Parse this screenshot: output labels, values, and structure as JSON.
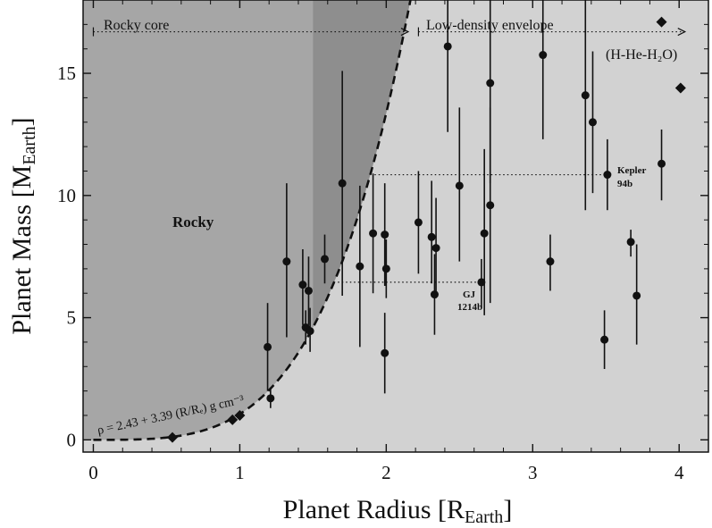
{
  "chart_data": {
    "type": "scatter",
    "xlabel": {
      "main": "Planet Radius [R",
      "sub": "Earth",
      "end": "]"
    },
    "ylabel": {
      "main": "Planet Mass [M",
      "sub": "Earth",
      "end": "]"
    },
    "xlim": [
      -0.07,
      4.2
    ],
    "ylim": [
      -0.5,
      18
    ],
    "xticks": [
      0,
      1,
      2,
      3,
      4
    ],
    "yticks": [
      0,
      5,
      10,
      15
    ],
    "grid": false,
    "annotations": {
      "rocky_core": "Rocky core",
      "low_density": "Low-density envelope",
      "hhe": "(H-He-H₂O)",
      "rocky": "Rocky",
      "kepler_line1": "Kepler",
      "kepler_line2": "94b",
      "gj_line1": "GJ",
      "gj_line2": "1214b",
      "equation": "ρ = 2.43 + 3.39 (R/Rₑ) g cm⁻³"
    },
    "boundary_curve": {
      "a": 2.43,
      "b": 3.39
    },
    "points": [
      {
        "x": 1.19,
        "y": 3.8,
        "lo": 2.0,
        "hi": 5.6
      },
      {
        "x": 1.21,
        "y": 1.7,
        "lo": 1.3,
        "hi": 2.1
      },
      {
        "x": 1.32,
        "y": 7.3,
        "lo": 4.2,
        "hi": 10.5
      },
      {
        "x": 1.43,
        "y": 6.35,
        "lo": 4.7,
        "hi": 7.8
      },
      {
        "x": 1.45,
        "y": 4.6,
        "lo": 3.9,
        "hi": 5.3
      },
      {
        "x": 1.47,
        "y": 6.1,
        "lo": 4.7,
        "hi": 7.5
      },
      {
        "x": 1.48,
        "y": 4.45,
        "lo": 3.6,
        "hi": 5.4
      },
      {
        "x": 1.58,
        "y": 7.4,
        "lo": 6.4,
        "hi": 8.4
      },
      {
        "x": 1.7,
        "y": 10.5,
        "lo": 5.9,
        "hi": 15.1
      },
      {
        "x": 1.82,
        "y": 7.1,
        "lo": 3.8,
        "hi": 10.4
      },
      {
        "x": 1.91,
        "y": 8.45,
        "lo": 6.0,
        "hi": 10.9
      },
      {
        "x": 1.99,
        "y": 8.4,
        "lo": 6.3,
        "hi": 10.5
      },
      {
        "x": 2.0,
        "y": 7.0,
        "lo": 5.8,
        "hi": 8.2
      },
      {
        "x": 1.99,
        "y": 3.55,
        "lo": 1.9,
        "hi": 5.2
      },
      {
        "x": 2.22,
        "y": 8.9,
        "lo": 6.8,
        "hi": 11.0
      },
      {
        "x": 2.31,
        "y": 8.3,
        "lo": 6.4,
        "hi": 10.6
      },
      {
        "x": 2.34,
        "y": 7.85,
        "lo": 5.8,
        "hi": 9.9
      },
      {
        "x": 2.33,
        "y": 5.95,
        "lo": 4.3,
        "hi": 7.6
      },
      {
        "x": 2.42,
        "y": 16.1,
        "lo": 12.6,
        "hi": 19.0
      },
      {
        "x": 2.5,
        "y": 10.4,
        "lo": 7.3,
        "hi": 13.6
      },
      {
        "x": 2.65,
        "y": 6.45,
        "lo": 5.4,
        "hi": 7.4
      },
      {
        "x": 2.67,
        "y": 8.45,
        "lo": 5.1,
        "hi": 11.9
      },
      {
        "x": 2.71,
        "y": 9.6,
        "lo": 5.6,
        "hi": 13.6
      },
      {
        "x": 2.71,
        "y": 14.6,
        "lo": 10.5,
        "hi": 18.5
      },
      {
        "x": 3.07,
        "y": 15.75,
        "lo": 12.3,
        "hi": 19.2
      },
      {
        "x": 3.12,
        "y": 7.3,
        "lo": 6.1,
        "hi": 8.4
      },
      {
        "x": 3.36,
        "y": 14.1,
        "lo": 9.4,
        "hi": 19.0
      },
      {
        "x": 3.41,
        "y": 13.0,
        "lo": 10.1,
        "hi": 15.9
      },
      {
        "x": 3.49,
        "y": 4.1,
        "lo": 2.9,
        "hi": 5.3
      },
      {
        "x": 3.51,
        "y": 10.85,
        "lo": 9.4,
        "hi": 12.3
      },
      {
        "x": 3.67,
        "y": 8.1,
        "lo": 7.5,
        "hi": 8.6
      },
      {
        "x": 3.71,
        "y": 5.9,
        "lo": 3.9,
        "hi": 8.0
      },
      {
        "x": 3.88,
        "y": 11.3,
        "lo": 9.8,
        "hi": 12.7
      }
    ],
    "diamonds": [
      {
        "x": 0.54,
        "y": 0.1
      },
      {
        "x": 0.95,
        "y": 0.82
      },
      {
        "x": 1.0,
        "y": 1.0
      },
      {
        "x": 3.88,
        "y": 17.1
      },
      {
        "x": 4.01,
        "y": 14.4
      }
    ],
    "arrows": {
      "rocky_core": {
        "x1": 0.0,
        "x2": 2.15,
        "y": 16.7
      },
      "envelope": {
        "x1": 2.22,
        "x2": 4.04,
        "y": 16.7
      }
    },
    "guide_lines": {
      "kepler": {
        "x1": 1.92,
        "x2": 3.47,
        "y": 10.85
      },
      "gj": {
        "x1": 1.67,
        "x2": 2.62,
        "y": 6.45
      }
    },
    "shaded_band": {
      "x1": 1.5,
      "x2": 2.2
    }
  }
}
